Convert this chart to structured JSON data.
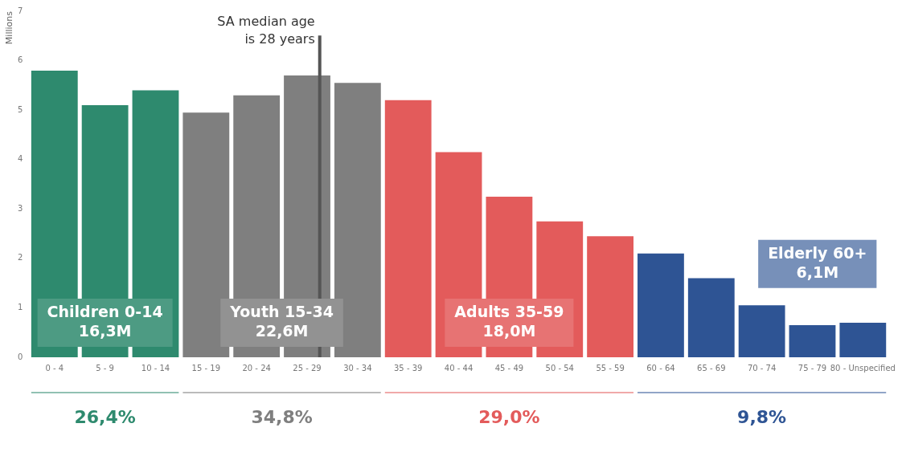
{
  "chart_data": {
    "type": "bar",
    "ylabel": "Millions",
    "categories": [
      "0 - 4",
      "5 - 9",
      "10 - 14",
      "15 - 19",
      "20 - 24",
      "25 - 29",
      "30 - 34",
      "35 - 39",
      "40 - 44",
      "45 - 49",
      "50 - 54",
      "55 - 59",
      "60 - 64",
      "65 - 69",
      "70 - 74",
      "75 - 79",
      "80 - Unspecified"
    ],
    "values": [
      5.8,
      5.1,
      5.4,
      4.95,
      5.3,
      5.7,
      5.55,
      5.2,
      4.15,
      3.25,
      2.75,
      2.45,
      2.1,
      1.6,
      1.05,
      0.65,
      0.7
    ],
    "colors": [
      "#2e8a6e",
      "#2e8a6e",
      "#2e8a6e",
      "#7f7f7f",
      "#7f7f7f",
      "#7f7f7f",
      "#7f7f7f",
      "#e35b5b",
      "#e35b5b",
      "#e35b5b",
      "#e35b5b",
      "#e35b5b",
      "#2e5494",
      "#2e5494",
      "#2e5494",
      "#2e5494",
      "#2e5494"
    ],
    "ylim": [
      0,
      7
    ],
    "yticks": [
      0,
      1,
      2,
      3,
      4,
      5,
      6,
      7
    ],
    "grid": false,
    "legend": false,
    "ref_lines": [
      {
        "axis": "x",
        "value": "25 - 29",
        "label": "SA median age is 28 years",
        "color": "#555555"
      }
    ],
    "annotations": [
      "Children 0-14 16,3M",
      "Youth 15-34 22,6M",
      "Adults 35-59 18,0M",
      "Elderly 60+ 6,1M",
      "26,4%",
      "34,8%",
      "29,0%",
      "9,8%"
    ]
  }
}
